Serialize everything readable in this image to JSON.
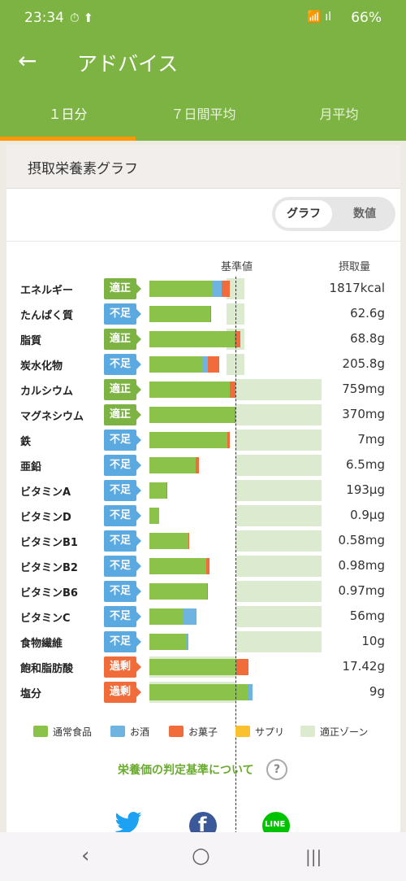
{
  "status_bar": {
    "time": "23:34",
    "icons": "⏱ ⬆",
    "system": "📶 ıl",
    "battery": "66%"
  },
  "app_bar": {
    "back_icon": "arrow-left-icon",
    "title": "アドバイス"
  },
  "tabs": [
    {
      "label": "１日分",
      "active": true
    },
    {
      "label": "７日間平均",
      "active": false
    },
    {
      "label": "月平均",
      "active": false
    }
  ],
  "card": {
    "title": "摂取栄養素グラフ",
    "toggle": {
      "graph_label": "グラフ",
      "value_label": "数値",
      "selected": "グラフ"
    },
    "header_ref": "基準値",
    "header_amount": "摂取量"
  },
  "colors": {
    "normal_food": "#8bc34a",
    "alcohol": "#6fb3e0",
    "snacks": "#f26b3a",
    "supplement": "#fbc02d",
    "zone": "#dcebd0",
    "status_ok": "#7cb342",
    "status_low": "#5aa9e0",
    "status_over": "#f06c3a"
  },
  "chart_data": {
    "type": "bar",
    "reference_value": 100,
    "categories": [
      "エネルギー",
      "たんぱく質",
      "脂質",
      "炭水化物",
      "カルシウム",
      "マグネシウム",
      "鉄",
      "亜鉛",
      "ビタミンA",
      "ビタミンD",
      "ビタミンB1",
      "ビタミンB2",
      "ビタミンB6",
      "ビタミンC",
      "食物繊維",
      "飽和脂肪酸",
      "塩分"
    ],
    "rows": [
      {
        "name": "エネルギー",
        "status": "適正",
        "status_type": "ok",
        "amount": "1817kcal",
        "zone": [
          90,
          110
        ],
        "segments": {
          "normal_food": 74,
          "alcohol": 10,
          "snacks": 9
        }
      },
      {
        "name": "たんぱく質",
        "status": "不足",
        "status_type": "low",
        "amount": "62.6g",
        "zone": [
          90,
          110
        ],
        "segments": {
          "normal_food": 71,
          "alcohol": 0,
          "snacks": 1
        }
      },
      {
        "name": "脂質",
        "status": "適正",
        "status_type": "ok",
        "amount": "68.8g",
        "zone": [
          90,
          110
        ],
        "segments": {
          "normal_food": 99,
          "alcohol": 0,
          "snacks": 7
        }
      },
      {
        "name": "炭水化物",
        "status": "不足",
        "status_type": "low",
        "amount": "205.8g",
        "zone": [
          90,
          110
        ],
        "segments": {
          "normal_food": 62,
          "alcohol": 6,
          "snacks": 13
        }
      },
      {
        "name": "カルシウム",
        "status": "適正",
        "status_type": "ok",
        "amount": "759mg",
        "zone": [
          100,
          200
        ],
        "segments": {
          "normal_food": 93,
          "alcohol": 0,
          "snacks": 7
        }
      },
      {
        "name": "マグネシウム",
        "status": "適正",
        "status_type": "ok",
        "amount": "370mg",
        "zone": [
          100,
          200
        ],
        "segments": {
          "normal_food": 99,
          "alcohol": 0,
          "snacks": 1
        }
      },
      {
        "name": "鉄",
        "status": "不足",
        "status_type": "low",
        "amount": "7mg",
        "zone": [
          100,
          200
        ],
        "segments": {
          "normal_food": 91,
          "alcohol": 0,
          "snacks": 2
        }
      },
      {
        "name": "亜鉛",
        "status": "不足",
        "status_type": "low",
        "amount": "6.5mg",
        "zone": [
          100,
          200
        ],
        "segments": {
          "normal_food": 54,
          "alcohol": 0,
          "snacks": 4
        }
      },
      {
        "name": "ビタミンA",
        "status": "不足",
        "status_type": "low",
        "amount": "193µg",
        "zone": [
          100,
          200
        ],
        "segments": {
          "normal_food": 20,
          "alcohol": 0,
          "snacks": 1
        }
      },
      {
        "name": "ビタミンD",
        "status": "不足",
        "status_type": "low",
        "amount": "0.9µg",
        "zone": [
          100,
          200
        ],
        "segments": {
          "normal_food": 11,
          "alcohol": 0,
          "snacks": 0
        }
      },
      {
        "name": "ビタミンB1",
        "status": "不足",
        "status_type": "low",
        "amount": "0.58mg",
        "zone": [
          100,
          200
        ],
        "segments": {
          "normal_food": 45,
          "alcohol": 0,
          "snacks": 1
        }
      },
      {
        "name": "ビタミンB2",
        "status": "不足",
        "status_type": "low",
        "amount": "0.98mg",
        "zone": [
          100,
          200
        ],
        "segments": {
          "normal_food": 66,
          "alcohol": 0,
          "snacks": 4
        }
      },
      {
        "name": "ビタミンB6",
        "status": "不足",
        "status_type": "low",
        "amount": "0.97mg",
        "zone": [
          100,
          200
        ],
        "segments": {
          "normal_food": 67,
          "alcohol": 0,
          "snacks": 1
        }
      },
      {
        "name": "ビタミンC",
        "status": "不足",
        "status_type": "low",
        "amount": "56mg",
        "zone": [
          100,
          200
        ],
        "segments": {
          "normal_food": 40,
          "alcohol": 15,
          "snacks": 0
        }
      },
      {
        "name": "食物繊維",
        "status": "不足",
        "status_type": "low",
        "amount": "10g",
        "zone": [
          100,
          200
        ],
        "segments": {
          "normal_food": 43,
          "alcohol": 2,
          "snacks": 0
        }
      },
      {
        "name": "飽和脂肪酸",
        "status": "過剰",
        "status_type": "over",
        "amount": "17.42g",
        "zone": [
          0,
          100
        ],
        "segments": {
          "normal_food": 101,
          "alcohol": 0,
          "snacks": 14
        }
      },
      {
        "name": "塩分",
        "status": "過剰",
        "status_type": "over",
        "amount": "9g",
        "zone": [
          0,
          100
        ],
        "segments": {
          "normal_food": 115,
          "alcohol": 5,
          "snacks": 0
        }
      }
    ],
    "legend": [
      "通常食品",
      "お酒",
      "お菓子",
      "サプリ",
      "適正ゾーン"
    ]
  },
  "link_text": "栄養価の判定基準について",
  "help_icon": "question-circle-icon",
  "social": [
    "twitter-icon",
    "facebook-icon",
    "line-icon"
  ],
  "social_line_text": "LINE",
  "social_facebook_text": "f",
  "nav": {
    "back": "‹",
    "home": "○",
    "recents": "|||"
  }
}
